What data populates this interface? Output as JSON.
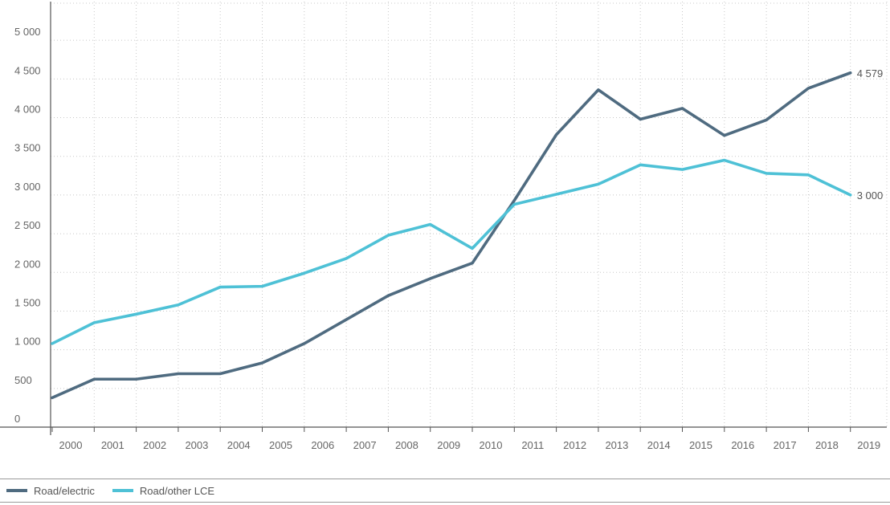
{
  "chart_data": {
    "type": "line",
    "x": [
      "2000",
      "2001",
      "2002",
      "2003",
      "2004",
      "2005",
      "2006",
      "2007",
      "2008",
      "2009",
      "2010",
      "2011",
      "2012",
      "2013",
      "2014",
      "2015",
      "2016",
      "2017",
      "2018",
      "2019"
    ],
    "series": [
      {
        "name": "Road/electric",
        "color": "#4f6b80",
        "values": [
          380,
          620,
          620,
          690,
          690,
          830,
          1080,
          1390,
          1700,
          1920,
          2120,
          2930,
          3780,
          4360,
          3980,
          4120,
          3770,
          3970,
          4380,
          4579
        ],
        "end_label": "4 579"
      },
      {
        "name": "Road/other LCE",
        "color": "#4ec1d6",
        "values": [
          1080,
          1350,
          1460,
          1580,
          1810,
          1820,
          1990,
          2180,
          2480,
          2620,
          2310,
          2880,
          3010,
          3140,
          3390,
          3330,
          3450,
          3280,
          3260,
          3000
        ],
        "end_label": "3 000"
      }
    ],
    "yticks": [
      "0",
      "500",
      "1 000",
      "1 500",
      "2 000",
      "2 500",
      "3 000",
      "3 500",
      "4 000",
      "4 500",
      "5 000"
    ],
    "ytick_values": [
      0,
      500,
      1000,
      1500,
      2000,
      2500,
      3000,
      3500,
      4000,
      4500,
      5000
    ],
    "ylim": [
      0,
      5500
    ],
    "grid": true,
    "legend_position": "bottom-left",
    "title": "",
    "xlabel": "",
    "ylabel": ""
  }
}
